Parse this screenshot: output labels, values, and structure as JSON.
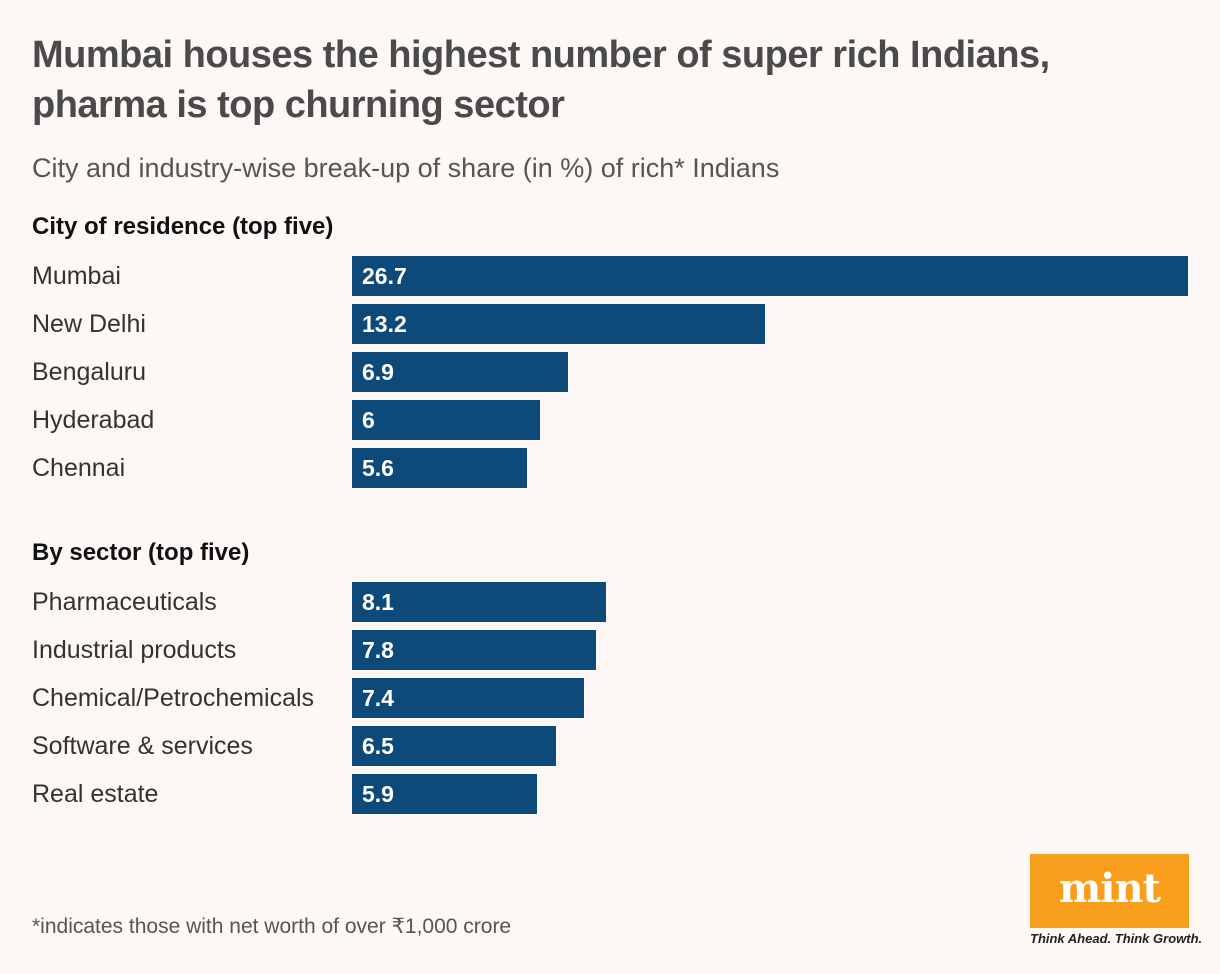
{
  "title": "Mumbai houses the highest number of super rich Indians, pharma is top churning sector",
  "subtitle": "City and industry-wise break-up of share (in %) of rich* Indians",
  "footnote": "*indicates those with net worth of over ₹1,000 crore",
  "logo": {
    "text": "mint",
    "tagline": "Think Ahead. Think Growth.",
    "color": "#f99d1c"
  },
  "colors": {
    "bar": "#0d4a7a",
    "background": "#fdf7f5"
  },
  "chart_data": [
    {
      "type": "bar",
      "orientation": "horizontal",
      "title": "City of residence (top five)",
      "categories": [
        "Mumbai",
        "New Delhi",
        "Bengaluru",
        "Hyderabad",
        "Chennai"
      ],
      "values": [
        26.7,
        13.2,
        6.9,
        6,
        5.6
      ],
      "value_labels": [
        "26.7",
        "13.2",
        "6.9",
        "6",
        "5.6"
      ],
      "xlim": [
        0,
        26.7
      ],
      "grid": false
    },
    {
      "type": "bar",
      "orientation": "horizontal",
      "title": "By sector (top five)",
      "categories": [
        "Pharmaceuticals",
        "Industrial products",
        "Chemical/Petrochemicals",
        "Software & services",
        "Real estate"
      ],
      "values": [
        8.1,
        7.8,
        7.4,
        6.5,
        5.9
      ],
      "value_labels": [
        "8.1",
        "7.8",
        "7.4",
        "6.5",
        "5.9"
      ],
      "xlim": [
        0,
        26.7
      ],
      "grid": false
    }
  ]
}
